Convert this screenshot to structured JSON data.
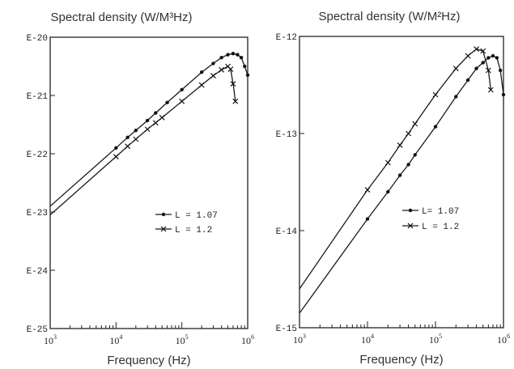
{
  "chart_data": [
    {
      "type": "line",
      "title": "Spectral density (W/M³Hz)",
      "xlabel": "Frequency (Hz)",
      "ylabel": "",
      "x_scale": "log",
      "y_scale": "log",
      "xlim": [
        1000,
        1000000
      ],
      "ylim": [
        -25,
        -20
      ],
      "x_ticks": [
        {
          "base": "10",
          "exp": "3",
          "value": 1000
        },
        {
          "base": "10",
          "exp": "4",
          "value": 10000
        },
        {
          "base": "10",
          "exp": "5",
          "value": 100000
        },
        {
          "base": "10",
          "exp": "6",
          "value": 1000000
        }
      ],
      "y_tick_labels": [
        {
          "label": "E-20",
          "value": -20
        },
        {
          "label": "E-21",
          "value": -21
        },
        {
          "label": "E-22",
          "value": -22
        },
        {
          "label": "E-23",
          "value": -23
        },
        {
          "label": "E-24",
          "value": -24
        },
        {
          "label": "E-25",
          "value": -25
        }
      ],
      "legend_position": "middle-right",
      "series": [
        {
          "name": "L = 1.07",
          "marker": "dot",
          "x": [
            1000,
            10000,
            15000,
            20000,
            30000,
            40000,
            60000,
            100000,
            200000,
            300000,
            400000,
            500000,
            600000,
            700000,
            800000,
            900000,
            1000000
          ],
          "y": [
            -22.9,
            -21.9,
            -21.72,
            -21.6,
            -21.43,
            -21.3,
            -21.12,
            -20.9,
            -20.6,
            -20.45,
            -20.35,
            -20.3,
            -20.28,
            -20.3,
            -20.35,
            -20.5,
            -20.65
          ]
        },
        {
          "name": "L = 1.2",
          "marker": "cross",
          "x": [
            1000,
            10000,
            15000,
            20000,
            30000,
            40000,
            50000,
            100000,
            200000,
            300000,
            400000,
            500000,
            550000,
            600000,
            650000
          ],
          "y": [
            -23.05,
            -22.05,
            -21.87,
            -21.75,
            -21.58,
            -21.47,
            -21.38,
            -21.1,
            -20.82,
            -20.66,
            -20.56,
            -20.5,
            -20.55,
            -20.8,
            -21.1
          ]
        }
      ]
    },
    {
      "type": "line",
      "title": "Spectral density (W/M²Hz)",
      "xlabel": "Frequency (Hz)",
      "ylabel": "",
      "x_scale": "log",
      "y_scale": "log",
      "xlim": [
        1000,
        1000000
      ],
      "ylim": [
        -15,
        -12
      ],
      "x_ticks": [
        {
          "base": "10",
          "exp": "3",
          "value": 1000
        },
        {
          "base": "10",
          "exp": "4",
          "value": 10000
        },
        {
          "base": "10",
          "exp": "5",
          "value": 100000
        },
        {
          "base": "10",
          "exp": "6",
          "value": 1000000
        }
      ],
      "y_tick_labels": [
        {
          "label": "E-12",
          "value": -12
        },
        {
          "label": "E-13",
          "value": -13
        },
        {
          "label": "E-14",
          "value": -14
        },
        {
          "label": "E-15",
          "value": -15
        }
      ],
      "legend_position": "middle-right",
      "series": [
        {
          "name": "L= 1.07",
          "marker": "dot",
          "x": [
            1000,
            10000,
            20000,
            30000,
            40000,
            50000,
            100000,
            200000,
            300000,
            400000,
            500000,
            600000,
            700000,
            800000,
            900000,
            1000000
          ],
          "y": [
            -14.85,
            -13.88,
            -13.6,
            -13.43,
            -13.32,
            -13.22,
            -12.93,
            -12.62,
            -12.45,
            -12.33,
            -12.27,
            -12.22,
            -12.2,
            -12.22,
            -12.35,
            -12.6
          ]
        },
        {
          "name": "L = 1.2",
          "marker": "cross",
          "x": [
            1000,
            10000,
            20000,
            30000,
            40000,
            50000,
            100000,
            200000,
            300000,
            400000,
            500000,
            600000,
            650000
          ],
          "y": [
            -14.6,
            -13.58,
            -13.3,
            -13.12,
            -13.0,
            -12.9,
            -12.6,
            -12.33,
            -12.2,
            -12.13,
            -12.15,
            -12.35,
            -12.55
          ]
        }
      ]
    }
  ]
}
